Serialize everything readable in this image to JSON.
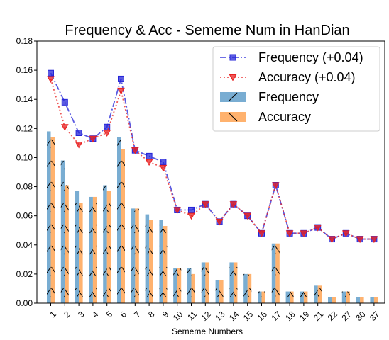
{
  "chart_data": {
    "type": "bar",
    "title": "Frequency & Acc - Sememe Num in HanDian",
    "xlabel": "Sememe Numbers",
    "ylabel": "",
    "ylim": [
      0,
      0.18
    ],
    "yticks": [
      "0.00",
      "0.02",
      "0.04",
      "0.06",
      "0.08",
      "0.10",
      "0.12",
      "0.14",
      "0.16",
      "0.18"
    ],
    "categories": [
      "1",
      "2",
      "3",
      "4",
      "5",
      "6",
      "7",
      "8",
      "9",
      "10",
      "11",
      "12",
      "13",
      "14",
      "15",
      "16",
      "17",
      "18",
      "19",
      "21",
      "22",
      "27",
      "30",
      "37"
    ],
    "grid": false,
    "legend_position": "top-right",
    "series": [
      {
        "name": "Frequency",
        "kind": "bar",
        "color": "#1f77b4",
        "hatch": "slash",
        "values": [
          0.118,
          0.098,
          0.077,
          0.073,
          0.081,
          0.114,
          0.065,
          0.061,
          0.057,
          0.024,
          0.024,
          0.028,
          0.016,
          0.028,
          0.02,
          0.008,
          0.041,
          0.008,
          0.008,
          0.012,
          0.004,
          0.008,
          0.004,
          0.004
        ]
      },
      {
        "name": "Accuracy",
        "kind": "bar",
        "color": "#ff7f0e",
        "hatch": "backslash",
        "values": [
          0.114,
          0.081,
          0.069,
          0.073,
          0.077,
          0.106,
          0.065,
          0.057,
          0.053,
          0.024,
          0.02,
          0.028,
          0.016,
          0.028,
          0.02,
          0.008,
          0.041,
          0.008,
          0.008,
          0.012,
          0.004,
          0.008,
          0.004,
          0.004
        ]
      },
      {
        "name": "Frequency (+0.04)",
        "kind": "line",
        "color": "#2424d8",
        "marker": "square",
        "line_style": "dashdot",
        "values": [
          0.158,
          0.138,
          0.117,
          0.113,
          0.121,
          0.154,
          0.105,
          0.101,
          0.097,
          0.064,
          0.064,
          0.068,
          0.056,
          0.068,
          0.06,
          0.048,
          0.081,
          0.048,
          0.048,
          0.052,
          0.044,
          0.048,
          0.044,
          0.044
        ]
      },
      {
        "name": "Accuracy (+0.04)",
        "kind": "line",
        "color": "#e82020",
        "marker": "triangle-down",
        "line_style": "dotted",
        "values": [
          0.154,
          0.121,
          0.109,
          0.113,
          0.117,
          0.146,
          0.105,
          0.097,
          0.093,
          0.064,
          0.06,
          0.068,
          0.056,
          0.068,
          0.06,
          0.048,
          0.081,
          0.048,
          0.048,
          0.052,
          0.044,
          0.048,
          0.044,
          0.044
        ]
      }
    ],
    "legend_order": [
      "Frequency (+0.04)",
      "Accuracy (+0.04)",
      "Frequency",
      "Accuracy"
    ]
  }
}
